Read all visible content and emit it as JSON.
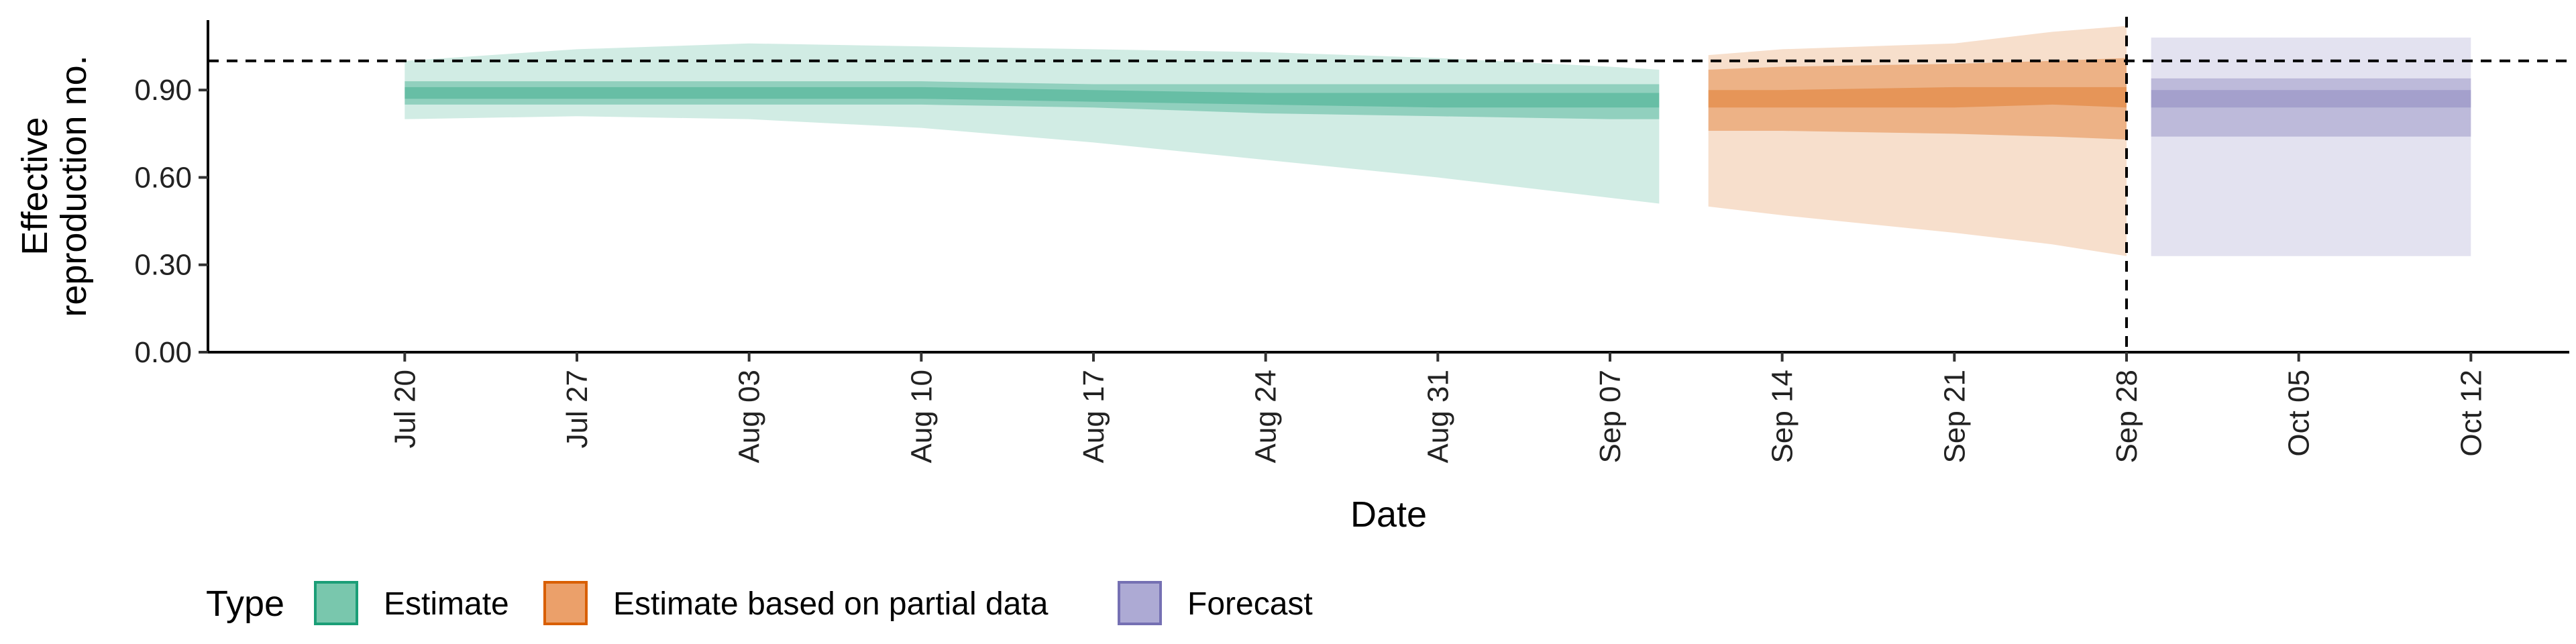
{
  "chart_data": {
    "type": "area",
    "title": "",
    "xlabel": "Date",
    "ylabel_lines": [
      "Effective",
      "reproduction no."
    ],
    "x_ticks": [
      "Jul 20",
      "Jul 27",
      "Aug 03",
      "Aug 10",
      "Aug 17",
      "Aug 24",
      "Aug 31",
      "Sep 07",
      "Sep 14",
      "Sep 21",
      "Sep 28",
      "Oct 05",
      "Oct 12"
    ],
    "y_ticks": [
      "0.00",
      "0.30",
      "0.60",
      "0.90"
    ],
    "ylim": [
      0,
      1.14
    ],
    "xlim": [
      "2020-07-12",
      "2020-10-16"
    ],
    "reference_line_y": 1.0,
    "reference_line_x": "2020-09-28",
    "grid": false,
    "legend": {
      "title": "Type",
      "placement": "bottom-left",
      "entries": [
        {
          "label": "Estimate",
          "fill": "#79c7ad",
          "stroke": "#1b9e77"
        },
        {
          "label": "Estimate based on partial data",
          "fill": "#eba06a",
          "stroke": "#d95f02"
        },
        {
          "label": "Forecast",
          "fill": "#adaad4",
          "stroke": "#7570b3"
        }
      ]
    },
    "series": [
      {
        "name": "Estimate",
        "color": "#1b9e77",
        "bands": {
          "x": [
            "2020-07-20",
            "2020-07-27",
            "2020-08-03",
            "2020-08-10",
            "2020-08-17",
            "2020-08-24",
            "2020-08-31",
            "2020-09-07",
            "2020-09-09"
          ],
          "median": [
            0.89,
            0.89,
            0.89,
            0.89,
            0.88,
            0.87,
            0.87,
            0.87,
            0.87
          ],
          "lower20": [
            0.87,
            0.87,
            0.87,
            0.87,
            0.86,
            0.85,
            0.84,
            0.84,
            0.84
          ],
          "upper20": [
            0.91,
            0.91,
            0.91,
            0.91,
            0.9,
            0.89,
            0.89,
            0.89,
            0.89
          ],
          "lower50": [
            0.85,
            0.85,
            0.85,
            0.85,
            0.84,
            0.82,
            0.81,
            0.8,
            0.8
          ],
          "upper50": [
            0.93,
            0.93,
            0.93,
            0.93,
            0.92,
            0.92,
            0.92,
            0.92,
            0.92
          ],
          "lower90": [
            0.8,
            0.81,
            0.8,
            0.77,
            0.72,
            0.66,
            0.6,
            0.53,
            0.51
          ],
          "upper90": [
            1.0,
            1.04,
            1.06,
            1.05,
            1.04,
            1.03,
            1.01,
            0.98,
            0.97
          ]
        }
      },
      {
        "name": "Estimate based on partial data",
        "color": "#d95f02",
        "bands": {
          "x": [
            "2020-09-11",
            "2020-09-14",
            "2020-09-21",
            "2020-09-25",
            "2020-09-28"
          ],
          "median": [
            0.87,
            0.87,
            0.88,
            0.88,
            0.88
          ],
          "lower20": [
            0.84,
            0.84,
            0.84,
            0.85,
            0.84
          ],
          "upper20": [
            0.9,
            0.9,
            0.91,
            0.91,
            0.91
          ],
          "lower50": [
            0.76,
            0.76,
            0.75,
            0.74,
            0.73
          ],
          "upper50": [
            0.97,
            0.98,
            0.99,
            1.0,
            1.01
          ],
          "lower90": [
            0.5,
            0.47,
            0.41,
            0.37,
            0.33
          ],
          "upper90": [
            1.02,
            1.04,
            1.06,
            1.1,
            1.12
          ]
        }
      },
      {
        "name": "Forecast",
        "color": "#7570b3",
        "bands": {
          "x": [
            "2020-09-29",
            "2020-10-12"
          ],
          "median": [
            0.87,
            0.87
          ],
          "lower20": [
            0.84,
            0.84
          ],
          "upper20": [
            0.9,
            0.9
          ],
          "lower50": [
            0.74,
            0.74
          ],
          "upper50": [
            0.94,
            0.94
          ],
          "lower90": [
            0.33,
            0.33
          ],
          "upper90": [
            1.08,
            1.08
          ]
        }
      }
    ]
  }
}
